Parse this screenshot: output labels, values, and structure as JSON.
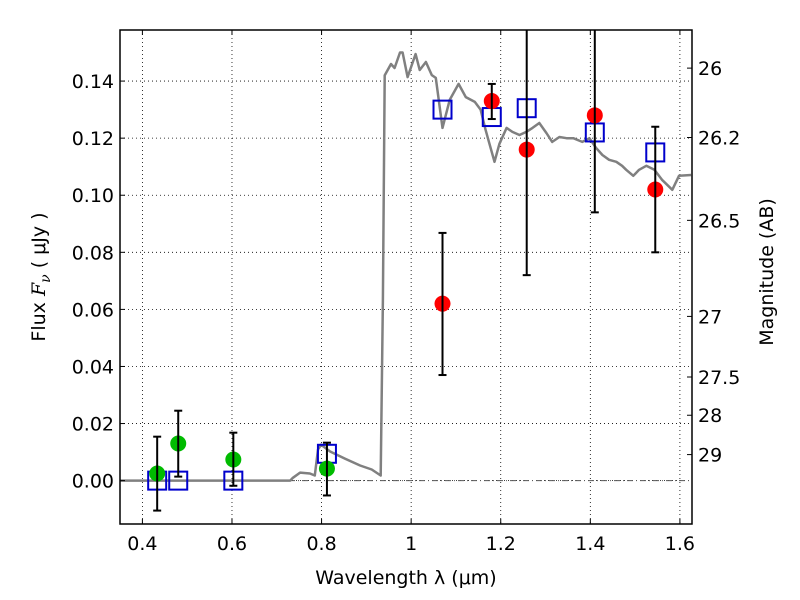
{
  "chart_data": {
    "type": "scatter",
    "title": "",
    "xlabel": "Wavelength  λ (μm)",
    "ylabel": {
      "prefix": "Flux  ",
      "symbol": "F",
      "subscript": "ν",
      "suffix": "  ( μJy )"
    },
    "ylabel_right": "Magnitude (AB)",
    "xlim": [
      0.35,
      1.627
    ],
    "ylim": [
      -0.0152,
      0.1579
    ],
    "grid": true,
    "legend": "none",
    "x_ticks": [
      0.4,
      0.6,
      0.8,
      1.0,
      1.2,
      1.4,
      1.6
    ],
    "x_tick_labels": [
      "0.4",
      "0.6",
      "0.8",
      "1",
      "1.2",
      "1.4",
      "1.6"
    ],
    "y_ticks": [
      0.0,
      0.02,
      0.04,
      0.06,
      0.08,
      0.1,
      0.12,
      0.14
    ],
    "y_tick_labels": [
      "0.00",
      "0.02",
      "0.04",
      "0.06",
      "0.08",
      "0.10",
      "0.12",
      "0.14"
    ],
    "right_axis": {
      "conversion": "flux_uJy = 10^((23.9 - mag)/2.5)",
      "ticks": [
        26,
        26.2,
        26.5,
        27,
        27.5,
        28,
        29
      ],
      "tick_labels": [
        "26",
        "26.2",
        "26.5",
        "27",
        "27.5",
        "28",
        "29"
      ]
    },
    "zero_line": {
      "y": 0,
      "style": "dash-dot",
      "color": "#555555"
    },
    "series": [
      {
        "name": "model-spectrum",
        "kind": "line",
        "color": "#808080",
        "x": [
          0.351,
          0.73,
          0.736,
          0.752,
          0.774,
          0.785,
          0.792,
          0.799,
          0.819,
          0.852,
          0.886,
          0.912,
          0.932,
          0.937,
          0.941,
          0.955,
          0.963,
          0.975,
          0.981,
          0.992,
          1.01,
          1.019,
          1.033,
          1.046,
          1.055,
          1.07,
          1.086,
          1.106,
          1.122,
          1.142,
          1.155,
          1.166,
          1.175,
          1.186,
          1.197,
          1.213,
          1.226,
          1.242,
          1.257,
          1.271,
          1.286,
          1.302,
          1.315,
          1.331,
          1.347,
          1.362,
          1.382,
          1.398,
          1.413,
          1.427,
          1.442,
          1.458,
          1.471,
          1.48,
          1.496,
          1.509,
          1.525,
          1.543,
          1.56,
          1.583,
          1.598,
          1.625
        ],
        "y": [
          0,
          0,
          0.001,
          0.0028,
          0.0025,
          0.0018,
          0.0109,
          0.0126,
          0.0102,
          0.0077,
          0.0053,
          0.0039,
          0.0018,
          0.0634,
          0.142,
          0.146,
          0.1446,
          0.15,
          0.15,
          0.1414,
          0.1495,
          0.1439,
          0.1467,
          0.1421,
          0.1411,
          0.1236,
          0.1334,
          0.139,
          0.1344,
          0.1327,
          0.13,
          0.123,
          0.118,
          0.1117,
          0.118,
          0.1236,
          0.1222,
          0.1211,
          0.1222,
          0.1236,
          0.1253,
          0.1218,
          0.1187,
          0.1204,
          0.12,
          0.12,
          0.1187,
          0.12,
          0.1166,
          0.1141,
          0.1124,
          0.1117,
          0.1103,
          0.1089,
          0.1068,
          0.1089,
          0.1103,
          0.1089,
          0.1054,
          0.1019,
          0.1068,
          0.1071
        ]
      },
      {
        "name": "model-photometry",
        "kind": "open-square",
        "color": "#0000cc",
        "x": [
          0.433,
          0.48,
          0.603,
          0.812,
          1.07,
          1.18,
          1.258,
          1.41,
          1.545
        ],
        "y": [
          0.0,
          0.0,
          0.0,
          0.0094,
          0.13,
          0.1274,
          0.1305,
          0.122,
          0.115
        ]
      },
      {
        "name": "observed-optical",
        "kind": "point-errorbar",
        "color": "#00bb00",
        "x": [
          0.433,
          0.48,
          0.603,
          0.812
        ],
        "y": [
          0.0025,
          0.013,
          0.0074,
          0.0042
        ],
        "err_low": [
          -0.0105,
          0.0014,
          -0.0018,
          -0.0052
        ],
        "err_high": [
          0.0154,
          0.0245,
          0.0168,
          0.0133
        ]
      },
      {
        "name": "observed-nir",
        "kind": "point-errorbar",
        "color": "#ff0000",
        "x": [
          1.07,
          1.18,
          1.258,
          1.41,
          1.545
        ],
        "y": [
          0.062,
          0.133,
          0.116,
          0.128,
          0.102
        ],
        "err_low": [
          0.037,
          0.1267,
          0.072,
          0.094,
          0.08
        ],
        "err_high": [
          0.0868,
          0.139,
          0.2,
          0.2,
          0.124
        ]
      }
    ]
  }
}
